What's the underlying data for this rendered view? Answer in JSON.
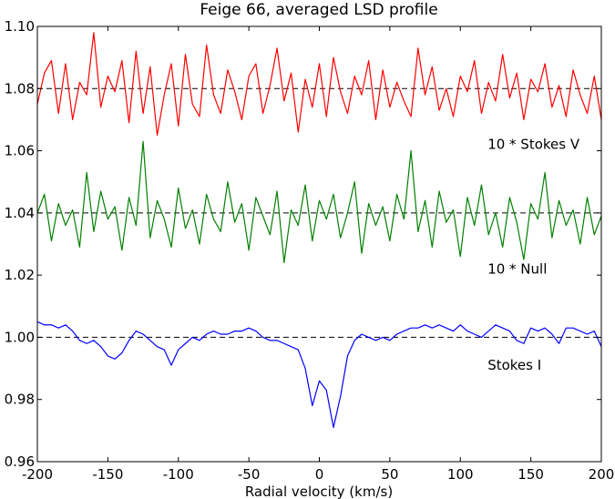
{
  "chart_data": {
    "type": "line",
    "title": "Feige 66, averaged LSD profile",
    "xlabel": "Radial velocity (km/s)",
    "ylabel": "",
    "xlim": [
      -200,
      200
    ],
    "ylim": [
      0.96,
      1.1
    ],
    "xticks": [
      -200,
      -150,
      -100,
      -50,
      0,
      50,
      100,
      150,
      200
    ],
    "yticks": [
      0.96,
      0.98,
      1.0,
      1.02,
      1.04,
      1.06,
      1.08,
      1.1
    ],
    "xtick_labels": [
      "-200",
      "-150",
      "-100",
      "-50",
      "0",
      "50",
      "100",
      "150",
      "200"
    ],
    "ytick_labels": [
      "0.96",
      "0.98",
      "1.00",
      "1.02",
      "1.04",
      "1.06",
      "1.08",
      "1.10"
    ],
    "grid": false,
    "reference_lines": [
      {
        "y": 1.08,
        "style": "dashed",
        "color": "#000000"
      },
      {
        "y": 1.04,
        "style": "dashed",
        "color": "#000000"
      },
      {
        "y": 1.0,
        "style": "dashed",
        "color": "#000000"
      }
    ],
    "annotations": [
      {
        "text": "10 * Stokes V",
        "x": 120,
        "y": 1.062
      },
      {
        "text": "10 * Null",
        "x": 120,
        "y": 1.022
      },
      {
        "text": "Stokes I",
        "x": 120,
        "y": 0.991
      }
    ],
    "series": [
      {
        "color": "#ff0000",
        "x": [
          -200,
          -195,
          -190,
          -185,
          -180,
          -175,
          -170,
          -165,
          -160,
          -155,
          -150,
          -145,
          -140,
          -135,
          -130,
          -125,
          -120,
          -115,
          -110,
          -105,
          -100,
          -95,
          -90,
          -85,
          -80,
          -75,
          -70,
          -65,
          -60,
          -55,
          -50,
          -45,
          -40,
          -35,
          -30,
          -25,
          -20,
          -15,
          -10,
          -5,
          0,
          5,
          10,
          15,
          20,
          25,
          30,
          35,
          40,
          45,
          50,
          55,
          60,
          65,
          70,
          75,
          80,
          85,
          90,
          95,
          100,
          105,
          110,
          115,
          120,
          125,
          130,
          135,
          140,
          145,
          150,
          155,
          160,
          165,
          170,
          175,
          180,
          185,
          190,
          195,
          200
        ],
        "values": [
          1.075,
          1.085,
          1.089,
          1.072,
          1.088,
          1.07,
          1.082,
          1.078,
          1.098,
          1.074,
          1.084,
          1.079,
          1.089,
          1.069,
          1.092,
          1.072,
          1.087,
          1.065,
          1.078,
          1.088,
          1.068,
          1.091,
          1.075,
          1.071,
          1.094,
          1.078,
          1.072,
          1.086,
          1.079,
          1.07,
          1.084,
          1.088,
          1.072,
          1.081,
          1.093,
          1.076,
          1.085,
          1.066,
          1.083,
          1.074,
          1.088,
          1.071,
          1.09,
          1.079,
          1.072,
          1.084,
          1.078,
          1.089,
          1.07,
          1.086,
          1.074,
          1.082,
          1.076,
          1.071,
          1.093,
          1.078,
          1.087,
          1.073,
          1.08,
          1.071,
          1.084,
          1.079,
          1.089,
          1.072,
          1.082,
          1.076,
          1.091,
          1.077,
          1.085,
          1.07,
          1.083,
          1.079,
          1.088,
          1.074,
          1.081,
          1.071,
          1.086,
          1.078,
          1.072,
          1.084,
          1.07
        ]
      },
      {
        "color": "#008000",
        "x": [
          -200,
          -195,
          -190,
          -185,
          -180,
          -175,
          -170,
          -165,
          -160,
          -155,
          -150,
          -145,
          -140,
          -135,
          -130,
          -125,
          -120,
          -115,
          -110,
          -105,
          -100,
          -95,
          -90,
          -85,
          -80,
          -75,
          -70,
          -65,
          -60,
          -55,
          -50,
          -45,
          -40,
          -35,
          -30,
          -25,
          -20,
          -15,
          -10,
          -5,
          0,
          5,
          10,
          15,
          20,
          25,
          30,
          35,
          40,
          45,
          50,
          55,
          60,
          65,
          70,
          75,
          80,
          85,
          90,
          95,
          100,
          105,
          110,
          115,
          120,
          125,
          130,
          135,
          140,
          145,
          150,
          155,
          160,
          165,
          170,
          175,
          180,
          185,
          190,
          195,
          200
        ],
        "values": [
          1.04,
          1.046,
          1.031,
          1.043,
          1.036,
          1.041,
          1.029,
          1.053,
          1.034,
          1.047,
          1.038,
          1.042,
          1.028,
          1.045,
          1.036,
          1.063,
          1.032,
          1.044,
          1.038,
          1.029,
          1.048,
          1.035,
          1.041,
          1.03,
          1.046,
          1.038,
          1.034,
          1.05,
          1.037,
          1.043,
          1.028,
          1.045,
          1.039,
          1.033,
          1.047,
          1.024,
          1.041,
          1.036,
          1.049,
          1.031,
          1.044,
          1.038,
          1.046,
          1.032,
          1.04,
          1.05,
          1.027,
          1.043,
          1.036,
          1.042,
          1.031,
          1.046,
          1.038,
          1.06,
          1.034,
          1.044,
          1.029,
          1.047,
          1.037,
          1.041,
          1.026,
          1.045,
          1.036,
          1.049,
          1.033,
          1.04,
          1.029,
          1.045,
          1.037,
          1.025,
          1.043,
          1.038,
          1.053,
          1.032,
          1.044,
          1.036,
          1.041,
          1.03,
          1.045,
          1.033,
          1.039
        ]
      },
      {
        "color": "#0000ff",
        "x": [
          -200,
          -195,
          -190,
          -185,
          -180,
          -175,
          -170,
          -165,
          -160,
          -155,
          -150,
          -145,
          -140,
          -135,
          -130,
          -125,
          -120,
          -115,
          -110,
          -105,
          -100,
          -95,
          -90,
          -85,
          -80,
          -75,
          -70,
          -65,
          -60,
          -55,
          -50,
          -45,
          -40,
          -35,
          -30,
          -25,
          -20,
          -15,
          -10,
          -5,
          0,
          5,
          10,
          15,
          20,
          25,
          30,
          35,
          40,
          45,
          50,
          55,
          60,
          65,
          70,
          75,
          80,
          85,
          90,
          95,
          100,
          105,
          110,
          115,
          120,
          125,
          130,
          135,
          140,
          145,
          150,
          155,
          160,
          165,
          170,
          175,
          180,
          185,
          190,
          195,
          200
        ],
        "values": [
          1.005,
          1.004,
          1.004,
          1.003,
          1.004,
          1.002,
          0.999,
          0.998,
          0.999,
          0.997,
          0.994,
          0.993,
          0.995,
          0.999,
          1.002,
          1.001,
          0.999,
          0.997,
          0.996,
          0.991,
          0.996,
          0.998,
          1.0,
          0.999,
          1.001,
          1.002,
          1.001,
          1.001,
          1.002,
          1.002,
          1.003,
          1.002,
          1.0,
          0.999,
          0.999,
          0.998,
          0.997,
          0.996,
          0.99,
          0.978,
          0.986,
          0.983,
          0.971,
          0.981,
          0.994,
          0.999,
          1.001,
          1.0,
          0.999,
          1.0,
          0.999,
          1.001,
          1.002,
          1.003,
          1.003,
          1.004,
          1.003,
          1.004,
          1.003,
          1.002,
          1.004,
          1.002,
          1.001,
          1.0,
          1.002,
          1.004,
          1.003,
          1.002,
          0.999,
          0.998,
          1.003,
          1.002,
          1.003,
          1.001,
          0.998,
          1.003,
          1.003,
          1.002,
          1.001,
          1.002,
          0.997
        ]
      }
    ]
  }
}
